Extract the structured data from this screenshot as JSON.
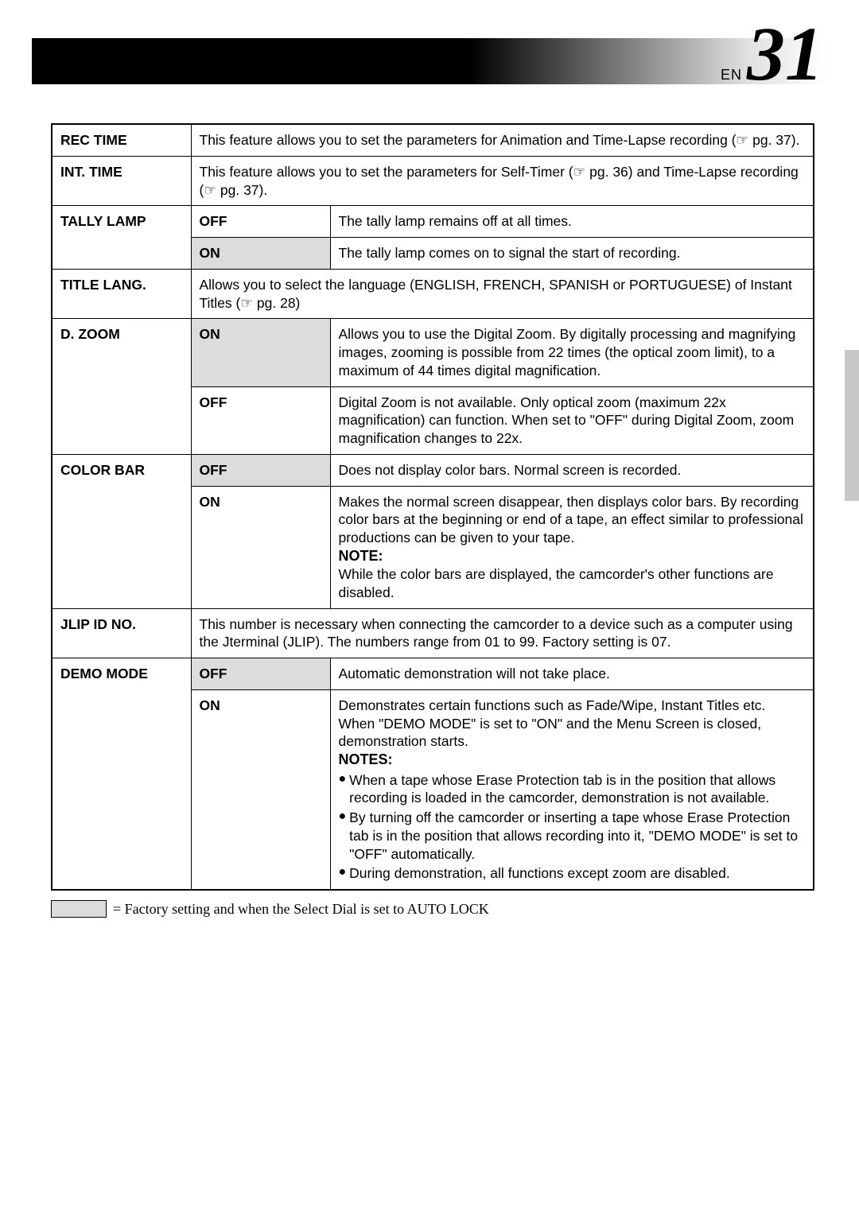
{
  "header": {
    "en_label": "EN",
    "page_number": "31"
  },
  "rows": {
    "rec_time": {
      "label": "REC TIME",
      "desc": "This feature allows you to set the parameters for Animation and Time-Lapse recording (☞ pg. 37)."
    },
    "int_time": {
      "label": "INT. TIME",
      "desc": "This feature allows you to set the parameters for Self-Timer (☞ pg. 36) and Time-Lapse recording (☞ pg. 37)."
    },
    "tally_lamp": {
      "label": "TALLY LAMP",
      "off": {
        "opt": "OFF",
        "desc": "The tally lamp remains off at all times."
      },
      "on": {
        "opt": "ON",
        "desc": "The tally lamp comes on to signal the start of recording."
      }
    },
    "title_lang": {
      "label": "TITLE LANG.",
      "desc": "Allows you to select the language (ENGLISH, FRENCH, SPANISH or PORTUGUESE) of Instant Titles (☞ pg. 28)"
    },
    "d_zoom": {
      "label": "D. ZOOM",
      "on": {
        "opt": "ON",
        "desc": "Allows you to use the Digital Zoom. By digitally processing and magnifying images, zooming is possible from 22 times (the optical zoom limit), to a maximum of 44 times digital magnification."
      },
      "off": {
        "opt": "OFF",
        "desc": "Digital Zoom is not available. Only optical zoom (maximum 22x magnification) can function. When set to \"OFF\" during Digital Zoom, zoom magnification changes to 22x."
      }
    },
    "color_bar": {
      "label": "COLOR BAR",
      "off": {
        "opt": "OFF",
        "desc": "Does not display color bars. Normal screen is recorded."
      },
      "on": {
        "opt": "ON",
        "desc": "Makes the normal screen disappear, then displays color bars. By recording color bars at the beginning or end of a tape, an effect similar to professional productions can be given to your tape.",
        "note_label": "NOTE:",
        "note_text": "While the color bars are displayed, the camcorder's other functions are disabled."
      }
    },
    "jlip": {
      "label": "JLIP ID NO.",
      "desc": "This number is necessary when connecting the camcorder to a device such as a computer using the Jterminal (JLIP). The numbers range from 01 to 99. Factory setting is 07."
    },
    "demo_mode": {
      "label": "DEMO MODE",
      "off": {
        "opt": "OFF",
        "desc": "Automatic demonstration will not take place."
      },
      "on": {
        "opt": "ON",
        "desc": "Demonstrates certain functions such as Fade/Wipe, Instant Titles etc. When \"DEMO MODE\" is set to \"ON\" and the Menu Screen is closed, demonstration starts.",
        "notes_label": "NOTES:",
        "bullet1": "When a tape whose Erase Protection tab is in the position that allows recording is loaded in the camcorder, demonstration is not available.",
        "bullet2": "By turning off the camcorder or inserting a tape whose Erase Protection tab is in the position that allows recording into it, \"DEMO MODE\" is set to \"OFF\" automatically.",
        "bullet3": "During demonstration, all functions except zoom are disabled."
      }
    }
  },
  "legend": {
    "text": " = Factory setting and when the Select Dial is set to AUTO LOCK"
  }
}
